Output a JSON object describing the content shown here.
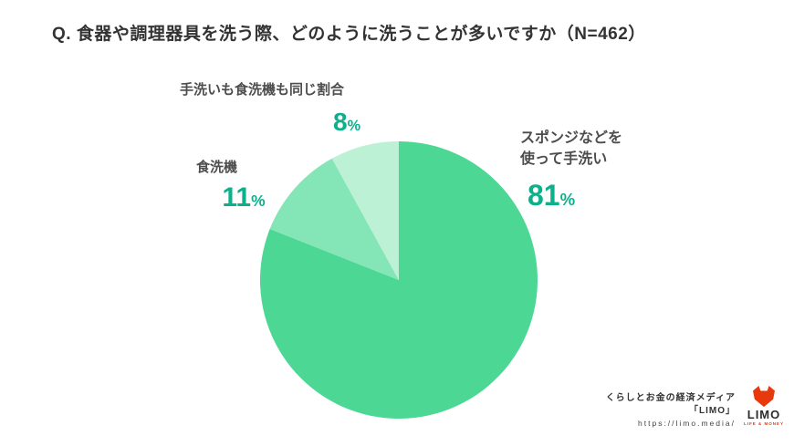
{
  "title": "Q. 食器や調理器具を洗う際、どのように洗うことが多いですか（N=462）",
  "chart_data": {
    "type": "pie",
    "categories": [
      "スポンジなどを使って手洗い",
      "食洗機",
      "手洗いも食洗機も同じ割合"
    ],
    "values": [
      81,
      11,
      8
    ],
    "unit": "%",
    "sample_size": "N=462",
    "colors": [
      "#4cd795",
      "#84e6b6",
      "#bcf1d6"
    ],
    "start_angle_deg": 0,
    "direction": "clockwise",
    "legend_position": "callouts-around-pie"
  },
  "callouts": {
    "sponge": {
      "line1": "スポンジなどを",
      "line2": "使って手洗い",
      "value": "81",
      "unit": "%"
    },
    "dishwasher": {
      "label": "食洗機",
      "value": "11",
      "unit": "%"
    },
    "equal": {
      "label": "手洗いも食洗機も同じ割合",
      "value": "8",
      "unit": "%"
    }
  },
  "footer": {
    "tagline": "くらしとお金の経済メディア",
    "brand_quoted": "「LIMO」",
    "url": "https://limo.media/",
    "logo_word": "LIMO",
    "logo_sub": "LIFE & MONEY"
  },
  "colors": {
    "percent_accent": "#0cb08b",
    "title_text": "#333333",
    "label_text": "#4d4d4d",
    "logo_red": "#e8380d",
    "background": "#ffffff"
  }
}
